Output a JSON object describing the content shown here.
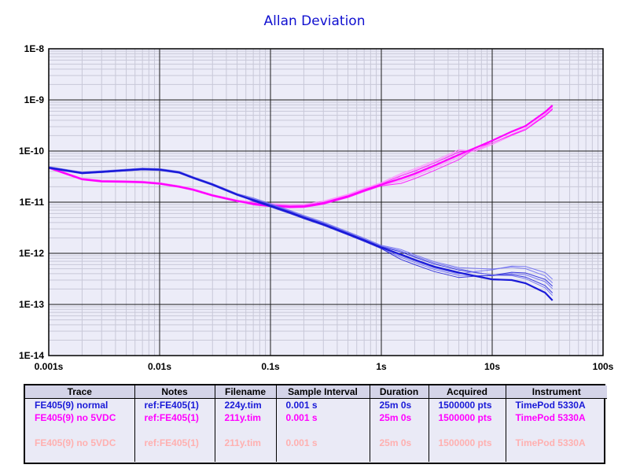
{
  "chart_data": {
    "type": "line",
    "title": "Allan Deviation",
    "xscale": "log",
    "yscale": "log",
    "xlim": [
      0.001,
      100
    ],
    "ylim": [
      1e-14,
      1e-08
    ],
    "grid": true,
    "x_tick_labels": [
      "0.001s",
      "0.01s",
      "0.1s",
      "1s",
      "10s",
      "100s"
    ],
    "y_tick_labels": [
      "1E-8",
      "1E-9",
      "1E-10",
      "1E-11",
      "1E-12",
      "1E-13",
      "1E-14"
    ],
    "colors": {
      "normal": "#1a1ad8",
      "normal_light": "#6a6af0",
      "no5v": "#ff00ff",
      "no5v_light": "#ff88ff",
      "legend_faded": "#ffb0b0",
      "grid_major": "#1a1a1a",
      "grid_minor": "#c8c8d8",
      "plot_bg": "#ececf8"
    },
    "series": [
      {
        "name": "FE405(9) normal",
        "x": [
          0.001,
          0.002,
          0.003,
          0.005,
          0.007,
          0.01,
          0.015,
          0.02,
          0.03,
          0.05,
          0.07,
          0.1,
          0.15,
          0.2,
          0.3,
          0.5,
          0.7,
          1,
          1.5,
          2,
          3,
          5,
          7,
          10,
          15,
          20,
          30,
          35
        ],
        "y": [
          4.7e-11,
          3.7e-11,
          3.9e-11,
          4.2e-11,
          4.4e-11,
          4.3e-11,
          3.8e-11,
          3e-11,
          2.2e-11,
          1.4e-11,
          1.1e-11,
          8.5e-12,
          6.3e-12,
          5e-12,
          3.7e-12,
          2.4e-12,
          1.8e-12,
          1.3e-12,
          9.5e-13,
          7.5e-13,
          5.5e-13,
          4.2e-13,
          3.6e-13,
          3.1e-13,
          3e-13,
          2.6e-13,
          1.7e-13,
          1.2e-13
        ]
      },
      {
        "name": "FE405(9) no 5VDC",
        "x": [
          0.001,
          0.002,
          0.003,
          0.005,
          0.007,
          0.01,
          0.015,
          0.02,
          0.03,
          0.05,
          0.07,
          0.1,
          0.15,
          0.2,
          0.3,
          0.5,
          0.7,
          1,
          1.5,
          2,
          3,
          5,
          7,
          10,
          15,
          20,
          30,
          35
        ],
        "y": [
          4.7e-11,
          2.8e-11,
          2.55e-11,
          2.5e-11,
          2.45e-11,
          2.3e-11,
          2e-11,
          1.75e-11,
          1.35e-11,
          1.05e-11,
          9.3e-12,
          8.6e-12,
          8.2e-12,
          8.3e-12,
          9.6e-12,
          1.3e-11,
          1.7e-11,
          2.2e-11,
          2.9e-11,
          3.6e-11,
          5.2e-11,
          8.5e-11,
          1.15e-10,
          1.6e-10,
          2.4e-10,
          3.1e-10,
          5.8e-10,
          7.8e-10
        ]
      }
    ]
  },
  "legend": {
    "headers": [
      "Trace",
      "Notes",
      "Filename",
      "Sample Interval",
      "Duration",
      "Acquired",
      "Instrument"
    ],
    "rows": [
      {
        "trace": "FE405(9) normal",
        "notes": "ref:FE405(1)",
        "filename": "224y.tim",
        "interval": "0.001 s",
        "duration": "25m 0s",
        "acquired": "1500000 pts",
        "instrument": "TimePod 5330A",
        "color": "#1a1ad8"
      },
      {
        "trace": "FE405(9) no 5VDC",
        "notes": "ref:FE405(1)",
        "filename": "211y.tim",
        "interval": "0.001 s",
        "duration": "25m 0s",
        "acquired": "1500000 pts",
        "instrument": "TimePod 5330A",
        "color": "#ff00ff"
      },
      {
        "trace": "FE405(9) no 5VDC",
        "notes": "ref:FE405(1)",
        "filename": "211y.tim",
        "interval": "0.001 s",
        "duration": "25m 0s",
        "acquired": "1500000 pts",
        "instrument": "TimePod 5330A",
        "color": "#ffb0b0"
      }
    ]
  }
}
